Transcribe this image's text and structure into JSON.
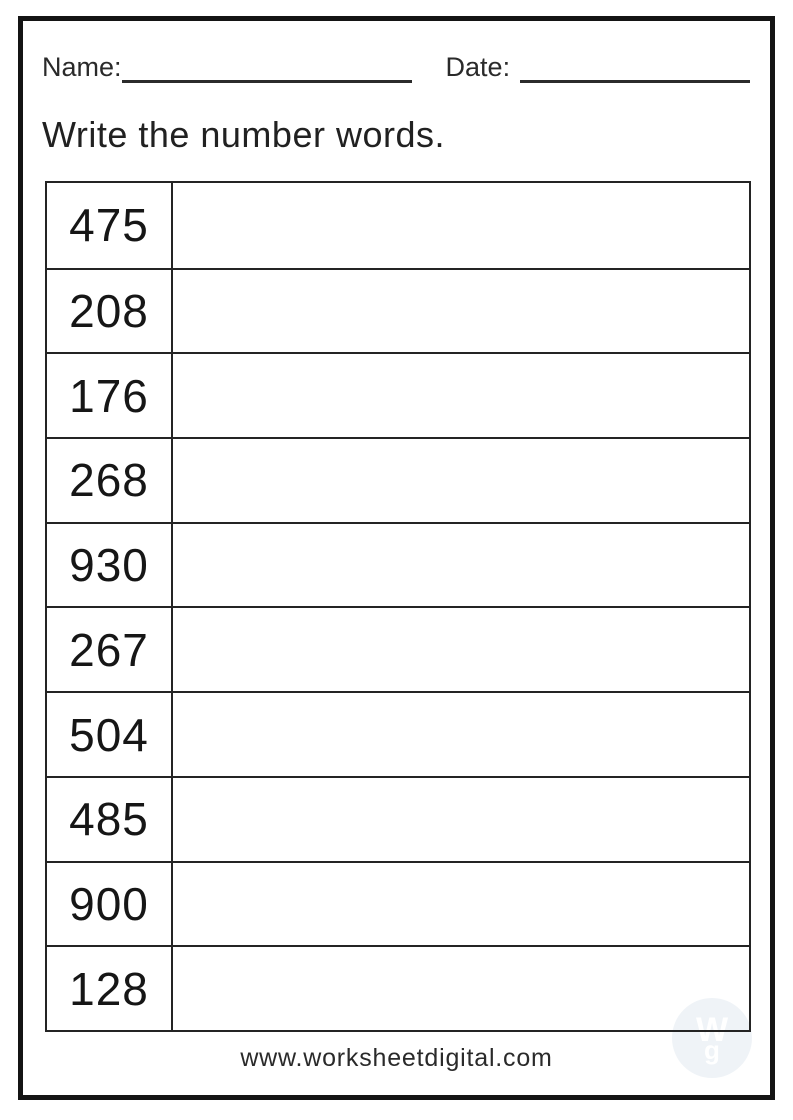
{
  "header": {
    "name_label": "Name:",
    "date_label": "Date:"
  },
  "title": "Write the number words.",
  "worksheet": {
    "numbers": [
      "475",
      "208",
      "176",
      "268",
      "930",
      "267",
      "504",
      "485",
      "900",
      "128"
    ],
    "answers": [
      "",
      "",
      "",
      "",
      "",
      "",
      "",
      "",
      "",
      ""
    ]
  },
  "footer": {
    "website": "www.worksheetdigital.com"
  },
  "watermark": {
    "top_letter": "W",
    "bottom_letter": "g"
  },
  "colors": {
    "ink": "#1c1c1c",
    "table_border": "#242424",
    "page_frame": "#141414",
    "watermark_bg": "#eff3f7",
    "paper": "#ffffff"
  }
}
